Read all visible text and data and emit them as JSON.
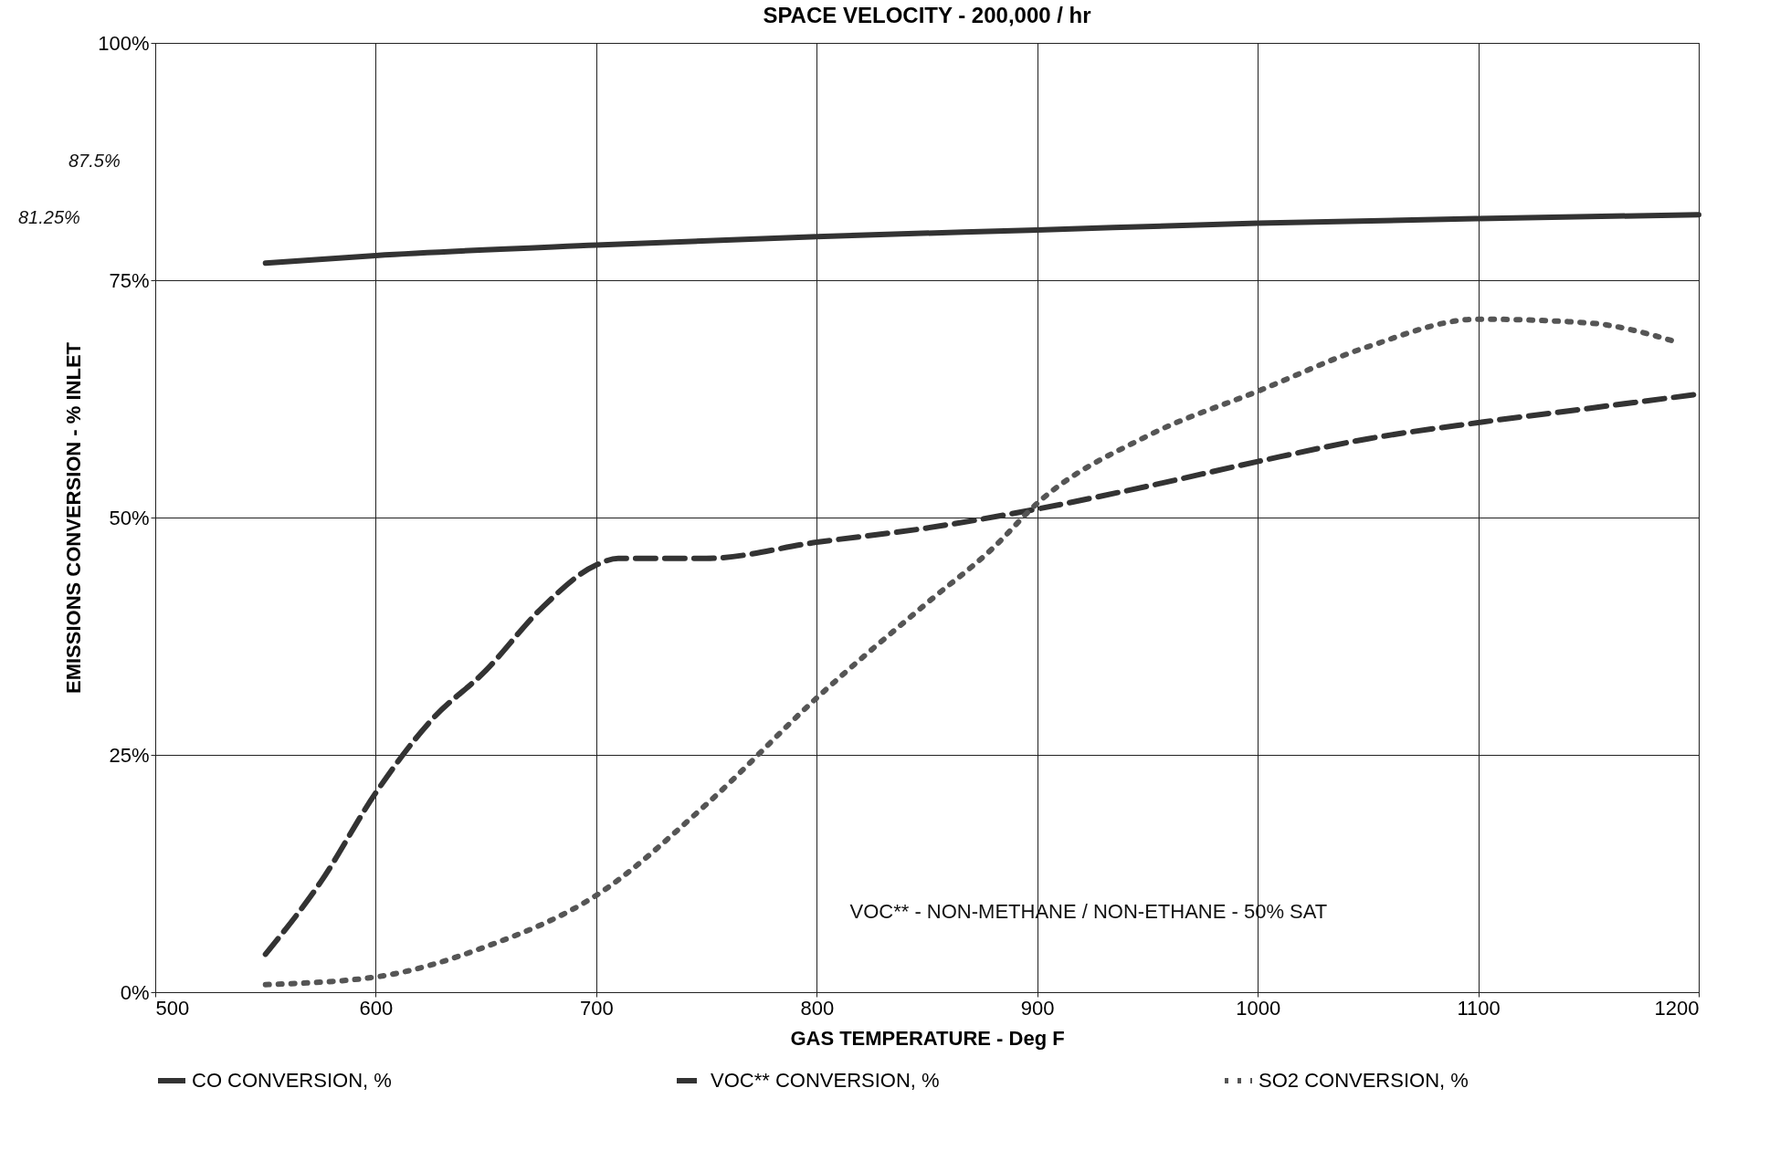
{
  "chart_data": {
    "type": "line",
    "title": "SPACE VELOCITY - 200,000 / hr",
    "xlabel": "GAS TEMPERATURE  -  Deg F",
    "ylabel": "EMISSIONS CONVERSION  -  % INLET",
    "annotations": [
      "VOC** - NON-METHANE / NON-ETHANE - 50% SAT",
      "87.5%",
      "81.25%"
    ],
    "series": [
      {
        "name": "CO CONVERSION, %",
        "color": "#333333",
        "line_style": "solid",
        "x": [
          550,
          600,
          700,
          800,
          900,
          1000,
          1100,
          1200
        ],
        "values": [
          76.8,
          77.6,
          78.7,
          79.6,
          80.3,
          81.0,
          81.5,
          81.9
        ]
      },
      {
        "name": "VOC** CONVERSION, %",
        "color": "#333333",
        "line_style": "dashed",
        "x": [
          550,
          575,
          600,
          625,
          650,
          675,
          700,
          710,
          750,
          800,
          850,
          900,
          950,
          1000,
          1050,
          1100,
          1150,
          1200
        ],
        "values": [
          4.0,
          11.6,
          21,
          28.6,
          33.9,
          40.4,
          45,
          45.7,
          45.7,
          47.4,
          48.9,
          50.9,
          53.3,
          55.9,
          58.3,
          60,
          61.5,
          63
        ]
      },
      {
        "name": "SO2 CONVERSION, %",
        "color": "#555555",
        "line_style": "dotted",
        "x": [
          550,
          600,
          650,
          700,
          750,
          800,
          850,
          880,
          900,
          950,
          1000,
          1050,
          1100,
          1150,
          1190
        ],
        "values": [
          0.8,
          1.6,
          4.8,
          10.2,
          19.8,
          31,
          41,
          46.8,
          51.5,
          58.6,
          63.3,
          68,
          70.9,
          70.5,
          68.5
        ]
      }
    ],
    "xlim": [
      500,
      1200
    ],
    "xticks": [
      500,
      600,
      700,
      800,
      900,
      1000,
      1100,
      1200
    ],
    "ylim": [
      0,
      100
    ],
    "yticks": [
      {
        "value": 0,
        "label": "0%"
      },
      {
        "value": 25,
        "label": "25%"
      },
      {
        "value": 50,
        "label": "50%"
      },
      {
        "value": 75,
        "label": "75%"
      },
      {
        "value": 100,
        "label": "100%"
      }
    ],
    "grid": true,
    "legend": "bottom"
  }
}
